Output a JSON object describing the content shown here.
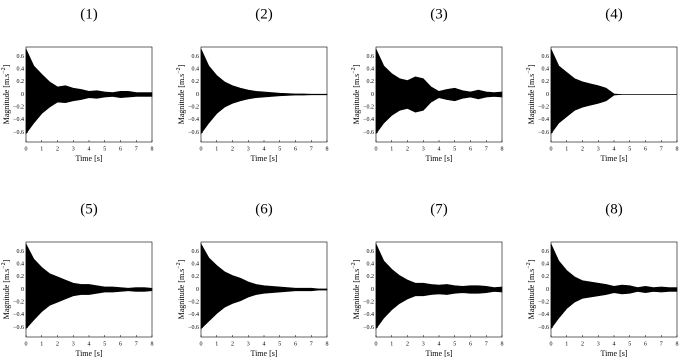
{
  "chart_data": [
    {
      "type": "area",
      "title": "(1)",
      "xlabel": "Time [s]",
      "ylabel_parts": [
        "Magnitude [m.s",
        "−2",
        "]"
      ],
      "x": [
        0,
        0.5,
        1,
        1.5,
        2,
        2.5,
        3,
        3.5,
        4,
        4.5,
        5,
        5.5,
        6,
        6.5,
        7,
        7.5,
        8
      ],
      "envelope_upper": [
        0.72,
        0.45,
        0.32,
        0.2,
        0.12,
        0.14,
        0.1,
        0.08,
        0.05,
        0.06,
        0.04,
        0.03,
        0.05,
        0.05,
        0.03,
        0.03,
        0.03
      ],
      "envelope_lower": [
        -0.62,
        -0.45,
        -0.3,
        -0.2,
        -0.12,
        -0.13,
        -0.1,
        -0.08,
        -0.05,
        -0.06,
        -0.04,
        -0.03,
        -0.05,
        -0.04,
        -0.03,
        -0.03,
        -0.03
      ],
      "color": "#000000",
      "xlim": [
        0,
        8
      ],
      "ylim": [
        -0.75,
        0.75
      ],
      "xticks": [
        0,
        1,
        2,
        3,
        4,
        5,
        6,
        7,
        8
      ],
      "yticks": [
        {
          "value": -0.6,
          "label": "−0.6"
        },
        {
          "value": -0.4,
          "label": "−0.4"
        },
        {
          "value": -0.2,
          "label": "−0.2"
        },
        0,
        0.2,
        0.4,
        0.6
      ]
    },
    {
      "type": "area",
      "title": "(2)",
      "xlabel": "Time [s]",
      "ylabel_parts": [
        "Magnitude [m.s",
        "−2",
        "]"
      ],
      "x": [
        0,
        0.5,
        1,
        1.5,
        2,
        2.5,
        3,
        3.5,
        4,
        4.5,
        5,
        5.5,
        6,
        6.5,
        7,
        7.5,
        8
      ],
      "envelope_upper": [
        0.72,
        0.45,
        0.3,
        0.2,
        0.14,
        0.1,
        0.07,
        0.05,
        0.04,
        0.03,
        0.02,
        0.015,
        0.01,
        0.01,
        0.005,
        0.005,
        0.005
      ],
      "envelope_lower": [
        -0.62,
        -0.45,
        -0.3,
        -0.2,
        -0.14,
        -0.1,
        -0.07,
        -0.05,
        -0.04,
        -0.03,
        -0.02,
        -0.015,
        -0.01,
        -0.01,
        -0.005,
        -0.005,
        -0.005
      ],
      "color": "#000000",
      "xlim": [
        0,
        8
      ],
      "ylim": [
        -0.75,
        0.75
      ],
      "xticks": [
        0,
        1,
        2,
        3,
        4,
        5,
        6,
        7,
        8
      ],
      "yticks": [
        {
          "value": -0.6,
          "label": "−0.6"
        },
        {
          "value": -0.4,
          "label": "−0.4"
        },
        {
          "value": -0.2,
          "label": "−0.2"
        },
        0,
        0.2,
        0.4,
        0.6
      ]
    },
    {
      "type": "area",
      "title": "(3)",
      "xlabel": "Time [s]",
      "ylabel_parts": [
        "Magnitude [m.s",
        "−2",
        "]"
      ],
      "x": [
        0,
        0.5,
        1,
        1.5,
        2,
        2.5,
        3,
        3.5,
        4,
        4.5,
        5,
        5.5,
        6,
        6.5,
        7,
        7.5,
        8
      ],
      "envelope_upper": [
        0.72,
        0.45,
        0.33,
        0.25,
        0.22,
        0.28,
        0.25,
        0.12,
        0.05,
        0.08,
        0.1,
        0.06,
        0.04,
        0.07,
        0.04,
        0.03,
        0.04
      ],
      "envelope_lower": [
        -0.62,
        -0.45,
        -0.33,
        -0.25,
        -0.22,
        -0.28,
        -0.25,
        -0.12,
        -0.05,
        -0.08,
        -0.1,
        -0.06,
        -0.04,
        -0.07,
        -0.04,
        -0.03,
        -0.04
      ],
      "color": "#000000",
      "xlim": [
        0,
        8
      ],
      "ylim": [
        -0.75,
        0.75
      ],
      "xticks": [
        0,
        1,
        2,
        3,
        4,
        5,
        6,
        7,
        8
      ],
      "yticks": [
        {
          "value": -0.6,
          "label": "−0.6"
        },
        {
          "value": -0.4,
          "label": "−0.4"
        },
        {
          "value": -0.2,
          "label": "−0.2"
        },
        0,
        0.2,
        0.4,
        0.6
      ]
    },
    {
      "type": "area",
      "title": "(4)",
      "xlabel": "Time [s]",
      "ylabel_parts": [
        "Magnitude [m.s",
        "−2",
        "]"
      ],
      "x": [
        0,
        0.5,
        1,
        1.5,
        2,
        2.5,
        3,
        3.5,
        4,
        4.5,
        5,
        5.5,
        6,
        6.5,
        7,
        7.5,
        8
      ],
      "envelope_upper": [
        0.72,
        0.45,
        0.35,
        0.25,
        0.2,
        0.17,
        0.14,
        0.1,
        0.01,
        0,
        0,
        0,
        0,
        0,
        0,
        0,
        0
      ],
      "envelope_lower": [
        -0.62,
        -0.45,
        -0.35,
        -0.25,
        -0.2,
        -0.17,
        -0.14,
        -0.1,
        -0.01,
        0,
        0,
        0,
        0,
        0,
        0,
        0,
        0
      ],
      "color": "#000000",
      "xlim": [
        0,
        8
      ],
      "ylim": [
        -0.75,
        0.75
      ],
      "xticks": [
        0,
        1,
        2,
        3,
        4,
        5,
        6,
        7,
        8
      ],
      "yticks": [
        {
          "value": -0.6,
          "label": "−0.6"
        },
        {
          "value": -0.4,
          "label": "−0.4"
        },
        {
          "value": -0.2,
          "label": "−0.2"
        },
        0,
        0.2,
        0.4,
        0.6
      ]
    },
    {
      "type": "area",
      "title": "(5)",
      "xlabel": "Time [s]",
      "ylabel_parts": [
        "Magnitude [m.s",
        "−2",
        "]"
      ],
      "x": [
        0,
        0.5,
        1,
        1.5,
        2,
        2.5,
        3,
        3.5,
        4,
        4.5,
        5,
        5.5,
        6,
        6.5,
        7,
        7.5,
        8
      ],
      "envelope_upper": [
        0.72,
        0.48,
        0.35,
        0.25,
        0.2,
        0.15,
        0.1,
        0.08,
        0.08,
        0.06,
        0.04,
        0.04,
        0.03,
        0.02,
        0.03,
        0.03,
        0.02
      ],
      "envelope_lower": [
        -0.62,
        -0.48,
        -0.35,
        -0.25,
        -0.2,
        -0.15,
        -0.1,
        -0.08,
        -0.08,
        -0.06,
        -0.04,
        -0.04,
        -0.03,
        -0.02,
        -0.03,
        -0.03,
        -0.02
      ],
      "color": "#000000",
      "xlim": [
        0,
        8
      ],
      "ylim": [
        -0.75,
        0.75
      ],
      "xticks": [
        0,
        1,
        2,
        3,
        4,
        5,
        6,
        7,
        8
      ],
      "yticks": [
        {
          "value": -0.6,
          "label": "−0.6"
        },
        {
          "value": -0.4,
          "label": "−0.4"
        },
        {
          "value": -0.2,
          "label": "−0.2"
        },
        0,
        0.2,
        0.4,
        0.6
      ]
    },
    {
      "type": "area",
      "title": "(6)",
      "xlabel": "Time [s]",
      "ylabel_parts": [
        "Magnitude [m.s",
        "−2",
        "]"
      ],
      "x": [
        0,
        0.5,
        1,
        1.5,
        2,
        2.5,
        3,
        3.5,
        4,
        4.5,
        5,
        5.5,
        6,
        6.5,
        7,
        7.5,
        8
      ],
      "envelope_upper": [
        0.72,
        0.5,
        0.38,
        0.28,
        0.22,
        0.18,
        0.12,
        0.08,
        0.06,
        0.05,
        0.04,
        0.03,
        0.02,
        0.02,
        0.02,
        0.01,
        0.01
      ],
      "envelope_lower": [
        -0.62,
        -0.5,
        -0.38,
        -0.28,
        -0.22,
        -0.18,
        -0.12,
        -0.08,
        -0.06,
        -0.05,
        -0.04,
        -0.03,
        -0.02,
        -0.02,
        -0.02,
        -0.01,
        -0.01
      ],
      "color": "#000000",
      "xlim": [
        0,
        8
      ],
      "ylim": [
        -0.75,
        0.75
      ],
      "xticks": [
        0,
        1,
        2,
        3,
        4,
        5,
        6,
        7,
        8
      ],
      "yticks": [
        {
          "value": -0.6,
          "label": "−0.6"
        },
        {
          "value": -0.4,
          "label": "−0.4"
        },
        {
          "value": -0.2,
          "label": "−0.2"
        },
        0,
        0.2,
        0.4,
        0.6
      ]
    },
    {
      "type": "area",
      "title": "(7)",
      "xlabel": "Time [s]",
      "ylabel_parts": [
        "Magnitude [m.s",
        "−2",
        "]"
      ],
      "x": [
        0,
        0.5,
        1,
        1.5,
        2,
        2.5,
        3,
        3.5,
        4,
        4.5,
        5,
        5.5,
        6,
        6.5,
        7,
        7.5,
        8
      ],
      "envelope_upper": [
        0.72,
        0.45,
        0.32,
        0.22,
        0.15,
        0.1,
        0.1,
        0.08,
        0.07,
        0.08,
        0.06,
        0.05,
        0.06,
        0.06,
        0.05,
        0.03,
        0.04
      ],
      "envelope_lower": [
        -0.62,
        -0.45,
        -0.32,
        -0.22,
        -0.15,
        -0.1,
        -0.1,
        -0.08,
        -0.07,
        -0.08,
        -0.06,
        -0.05,
        -0.06,
        -0.06,
        -0.05,
        -0.03,
        -0.04
      ],
      "color": "#000000",
      "xlim": [
        0,
        8
      ],
      "ylim": [
        -0.75,
        0.75
      ],
      "xticks": [
        0,
        1,
        2,
        3,
        4,
        5,
        6,
        7,
        8
      ],
      "yticks": [
        {
          "value": -0.6,
          "label": "−0.6"
        },
        {
          "value": -0.4,
          "label": "−0.4"
        },
        {
          "value": -0.2,
          "label": "−0.2"
        },
        0,
        0.2,
        0.4,
        0.6
      ]
    },
    {
      "type": "area",
      "title": "(8)",
      "xlabel": "Time [s]",
      "ylabel_parts": [
        "Magnitude [m.s",
        "−2",
        "]"
      ],
      "x": [
        0,
        0.5,
        1,
        1.5,
        2,
        2.5,
        3,
        3.5,
        4,
        4.5,
        5,
        5.5,
        6,
        6.5,
        7,
        7.5,
        8
      ],
      "envelope_upper": [
        0.72,
        0.45,
        0.3,
        0.2,
        0.14,
        0.12,
        0.1,
        0.08,
        0.05,
        0.07,
        0.06,
        0.03,
        0.05,
        0.03,
        0.04,
        0.03,
        0.03
      ],
      "envelope_lower": [
        -0.62,
        -0.45,
        -0.3,
        -0.2,
        -0.14,
        -0.12,
        -0.1,
        -0.08,
        -0.05,
        -0.07,
        -0.06,
        -0.03,
        -0.05,
        -0.03,
        -0.04,
        -0.03,
        -0.03
      ],
      "color": "#000000",
      "xlim": [
        0,
        8
      ],
      "ylim": [
        -0.75,
        0.75
      ],
      "xticks": [
        0,
        1,
        2,
        3,
        4,
        5,
        6,
        7,
        8
      ],
      "yticks": [
        {
          "value": -0.6,
          "label": "−0.6"
        },
        {
          "value": -0.4,
          "label": "−0.4"
        },
        {
          "value": -0.2,
          "label": "−0.2"
        },
        0,
        0.2,
        0.4,
        0.6
      ]
    }
  ]
}
